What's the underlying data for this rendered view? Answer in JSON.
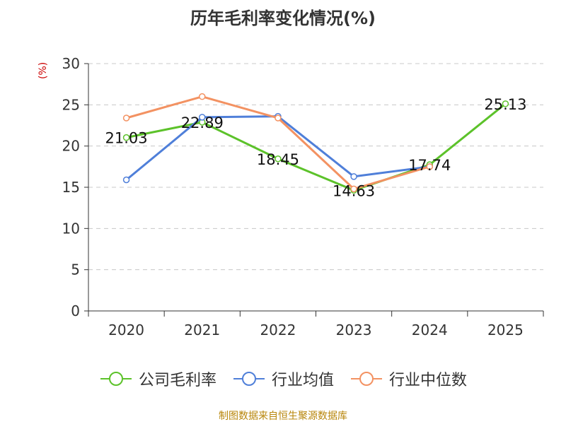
{
  "title": "历年毛利率变化情况(%)",
  "y_unit": "(%)",
  "source": "制图数据来自恒生聚源数据库",
  "colors": {
    "company": "#5cc22a",
    "industry_avg": "#4f7fd9",
    "industry_median": "#f39262",
    "axis": "#333333",
    "grid": "#c8c8c8"
  },
  "chart_data": {
    "type": "line",
    "title": "历年毛利率变化情况(%)",
    "xlabel": "",
    "ylabel": "(%)",
    "ylim": [
      0,
      30
    ],
    "yticks": [
      "0",
      "5",
      "10",
      "15",
      "20",
      "25",
      "30"
    ],
    "categories": [
      "2020",
      "2021",
      "2022",
      "2023",
      "2024",
      "2025"
    ],
    "grid": "dashed horizontal",
    "legend_position": "bottom",
    "series": [
      {
        "name": "公司毛利率",
        "values": [
          21.03,
          22.89,
          18.45,
          14.63,
          17.74,
          25.13
        ],
        "labels": [
          "21.03",
          "22.89",
          "18.45",
          "14.63",
          "17.74",
          "25.13"
        ]
      },
      {
        "name": "行业均值",
        "values": [
          15.9,
          23.5,
          23.6,
          16.3,
          17.5,
          null
        ]
      },
      {
        "name": "行业中位数",
        "values": [
          23.4,
          26.0,
          23.4,
          14.8,
          17.5,
          null
        ]
      }
    ]
  }
}
